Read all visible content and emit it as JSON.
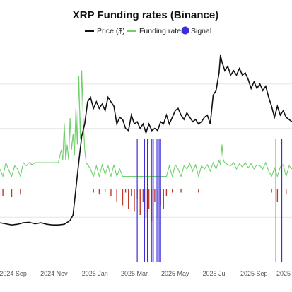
{
  "chart_data": {
    "type": "line",
    "title": "XRP Funding rates (Binance)",
    "legend": {
      "position": "top-center",
      "entries": [
        {
          "key": "price",
          "label": "Price ($)",
          "color": "#111111",
          "kind": "line"
        },
        {
          "key": "funding",
          "label": "Funding rates",
          "color": "#6fcf6a",
          "kind": "line"
        },
        {
          "key": "signal",
          "label": "Signal",
          "color": "#3b2fd9",
          "kind": "dot"
        }
      ]
    },
    "x_range": [
      0,
      1
    ],
    "x_ticks": [
      {
        "label": "2024 Sep",
        "t": 0.045
      },
      {
        "label": "2024 Nov",
        "t": 0.185
      },
      {
        "label": "2025 Jan",
        "t": 0.325
      },
      {
        "label": "2025 Mar",
        "t": 0.46
      },
      {
        "label": "2025 May",
        "t": 0.6
      },
      {
        "label": "2025 Jul",
        "t": 0.735
      },
      {
        "label": "2025 Sep",
        "t": 0.87
      },
      {
        "label": "2025",
        "t": 1.0
      }
    ],
    "grid": true,
    "price": {
      "name": "Price ($)",
      "color": "#111111",
      "y_range": [
        0,
        1
      ],
      "points": [
        [
          0.0,
          0.175
        ],
        [
          0.02,
          0.17
        ],
        [
          0.04,
          0.165
        ],
        [
          0.06,
          0.168
        ],
        [
          0.08,
          0.175
        ],
        [
          0.1,
          0.177
        ],
        [
          0.12,
          0.17
        ],
        [
          0.14,
          0.175
        ],
        [
          0.16,
          0.168
        ],
        [
          0.18,
          0.165
        ],
        [
          0.2,
          0.165
        ],
        [
          0.22,
          0.168
        ],
        [
          0.24,
          0.185
        ],
        [
          0.25,
          0.21
        ],
        [
          0.26,
          0.33
        ],
        [
          0.27,
          0.45
        ],
        [
          0.28,
          0.565
        ],
        [
          0.29,
          0.62
        ],
        [
          0.3,
          0.72
        ],
        [
          0.31,
          0.74
        ],
        [
          0.32,
          0.69
        ],
        [
          0.33,
          0.72
        ],
        [
          0.34,
          0.69
        ],
        [
          0.35,
          0.71
        ],
        [
          0.36,
          0.68
        ],
        [
          0.37,
          0.74
        ],
        [
          0.38,
          0.72
        ],
        [
          0.39,
          0.7
        ],
        [
          0.4,
          0.62
        ],
        [
          0.41,
          0.65
        ],
        [
          0.42,
          0.64
        ],
        [
          0.43,
          0.6
        ],
        [
          0.44,
          0.59
        ],
        [
          0.45,
          0.66
        ],
        [
          0.46,
          0.62
        ],
        [
          0.47,
          0.63
        ],
        [
          0.48,
          0.6
        ],
        [
          0.49,
          0.62
        ],
        [
          0.5,
          0.58
        ],
        [
          0.51,
          0.62
        ],
        [
          0.52,
          0.59
        ],
        [
          0.53,
          0.6
        ],
        [
          0.54,
          0.59
        ],
        [
          0.55,
          0.63
        ],
        [
          0.56,
          0.62
        ],
        [
          0.57,
          0.66
        ],
        [
          0.58,
          0.62
        ],
        [
          0.59,
          0.65
        ],
        [
          0.6,
          0.68
        ],
        [
          0.61,
          0.69
        ],
        [
          0.62,
          0.66
        ],
        [
          0.63,
          0.64
        ],
        [
          0.64,
          0.67
        ],
        [
          0.65,
          0.65
        ],
        [
          0.66,
          0.63
        ],
        [
          0.67,
          0.64
        ],
        [
          0.68,
          0.62
        ],
        [
          0.69,
          0.63
        ],
        [
          0.7,
          0.65
        ],
        [
          0.71,
          0.66
        ],
        [
          0.72,
          0.62
        ],
        [
          0.73,
          0.75
        ],
        [
          0.74,
          0.77
        ],
        [
          0.75,
          0.85
        ],
        [
          0.755,
          0.93
        ],
        [
          0.76,
          0.9
        ],
        [
          0.77,
          0.86
        ],
        [
          0.78,
          0.88
        ],
        [
          0.79,
          0.84
        ],
        [
          0.8,
          0.86
        ],
        [
          0.81,
          0.84
        ],
        [
          0.82,
          0.87
        ],
        [
          0.83,
          0.84
        ],
        [
          0.84,
          0.85
        ],
        [
          0.85,
          0.82
        ],
        [
          0.86,
          0.78
        ],
        [
          0.87,
          0.81
        ],
        [
          0.88,
          0.78
        ],
        [
          0.89,
          0.8
        ],
        [
          0.9,
          0.77
        ],
        [
          0.91,
          0.79
        ],
        [
          0.92,
          0.74
        ],
        [
          0.93,
          0.7
        ],
        [
          0.94,
          0.65
        ],
        [
          0.95,
          0.7
        ],
        [
          0.96,
          0.66
        ],
        [
          0.97,
          0.68
        ],
        [
          0.98,
          0.65
        ],
        [
          1.0,
          0.63
        ]
      ]
    },
    "funding": {
      "name": "Funding rates",
      "color": "#6fcf6a",
      "negative_color": "#c0392b",
      "y_range": [
        -1,
        1
      ],
      "baseline": 0.2,
      "points": [
        [
          0.0,
          0.02
        ],
        [
          0.01,
          -0.1
        ],
        [
          0.02,
          0.08
        ],
        [
          0.03,
          0.01
        ],
        [
          0.04,
          -0.12
        ],
        [
          0.05,
          0.05
        ],
        [
          0.06,
          0.02
        ],
        [
          0.07,
          -0.08
        ],
        [
          0.08,
          0.08
        ],
        [
          0.09,
          0.05
        ],
        [
          0.1,
          0.08
        ],
        [
          0.11,
          0.06
        ],
        [
          0.12,
          0.08
        ],
        [
          0.13,
          0.08
        ],
        [
          0.14,
          0.08
        ],
        [
          0.15,
          0.08
        ],
        [
          0.16,
          0.08
        ],
        [
          0.17,
          0.08
        ],
        [
          0.18,
          0.08
        ],
        [
          0.19,
          0.08
        ],
        [
          0.2,
          0.08
        ],
        [
          0.21,
          0.2
        ],
        [
          0.215,
          0.1
        ],
        [
          0.22,
          0.45
        ],
        [
          0.225,
          0.1
        ],
        [
          0.23,
          0.25
        ],
        [
          0.235,
          0.1
        ],
        [
          0.24,
          0.5
        ],
        [
          0.245,
          0.2
        ],
        [
          0.25,
          0.35
        ],
        [
          0.255,
          0.15
        ],
        [
          0.26,
          0.6
        ],
        [
          0.265,
          0.25
        ],
        [
          0.27,
          0.9
        ],
        [
          0.275,
          0.3
        ],
        [
          0.28,
          0.95
        ],
        [
          0.285,
          0.5
        ],
        [
          0.29,
          0.2
        ],
        [
          0.295,
          0.08
        ],
        [
          0.3,
          0.06
        ],
        [
          0.31,
          0.02
        ],
        [
          0.32,
          -0.05
        ],
        [
          0.33,
          0.05
        ],
        [
          0.34,
          -0.08
        ],
        [
          0.35,
          0.06
        ],
        [
          0.36,
          -0.03
        ],
        [
          0.37,
          0.05
        ],
        [
          0.38,
          -0.1
        ],
        [
          0.39,
          0.06
        ],
        [
          0.4,
          -0.2
        ],
        [
          0.41,
          0.02
        ],
        [
          0.42,
          -0.25
        ],
        [
          0.43,
          -0.05
        ],
        [
          0.44,
          -0.3
        ],
        [
          0.45,
          -0.1
        ],
        [
          0.46,
          -0.35
        ],
        [
          0.47,
          -0.15
        ],
        [
          0.48,
          -0.4
        ],
        [
          0.49,
          -0.2
        ],
        [
          0.5,
          -0.45
        ],
        [
          0.51,
          -0.3
        ],
        [
          0.52,
          -0.5
        ],
        [
          0.53,
          -0.2
        ],
        [
          0.54,
          -0.45
        ],
        [
          0.55,
          -0.25
        ],
        [
          0.56,
          -0.3
        ],
        [
          0.57,
          -0.1
        ],
        [
          0.58,
          0.05
        ],
        [
          0.59,
          -0.05
        ],
        [
          0.6,
          0.06
        ],
        [
          0.61,
          0.02
        ],
        [
          0.62,
          -0.05
        ],
        [
          0.63,
          0.05
        ],
        [
          0.64,
          0.02
        ],
        [
          0.65,
          0.07
        ],
        [
          0.66,
          0.0
        ],
        [
          0.67,
          0.06
        ],
        [
          0.68,
          -0.05
        ],
        [
          0.69,
          0.05
        ],
        [
          0.7,
          0.02
        ],
        [
          0.71,
          0.06
        ],
        [
          0.72,
          0.0
        ],
        [
          0.73,
          0.08
        ],
        [
          0.74,
          0.02
        ],
        [
          0.75,
          0.1
        ],
        [
          0.755,
          0.06
        ],
        [
          0.76,
          0.25
        ],
        [
          0.765,
          0.1
        ],
        [
          0.77,
          0.08
        ],
        [
          0.78,
          0.06
        ],
        [
          0.79,
          0.05
        ],
        [
          0.8,
          0.08
        ],
        [
          0.81,
          0.02
        ],
        [
          0.82,
          0.07
        ],
        [
          0.83,
          0.04
        ],
        [
          0.84,
          0.08
        ],
        [
          0.85,
          0.03
        ],
        [
          0.86,
          0.07
        ],
        [
          0.87,
          0.02
        ],
        [
          0.88,
          0.06
        ],
        [
          0.89,
          0.05
        ],
        [
          0.9,
          0.02
        ],
        [
          0.91,
          0.08
        ],
        [
          0.92,
          0.0
        ],
        [
          0.93,
          -0.05
        ],
        [
          0.94,
          0.03
        ],
        [
          0.95,
          -0.2
        ],
        [
          0.96,
          0.04
        ],
        [
          0.97,
          0.06
        ],
        [
          0.98,
          -0.08
        ],
        [
          0.99,
          0.05
        ],
        [
          1.0,
          0.02
        ]
      ]
    },
    "signal": {
      "name": "Signal",
      "color": "#3b2fd9",
      "x": [
        0.47,
        0.495,
        0.505,
        0.52,
        0.525,
        0.535,
        0.54,
        0.545,
        0.55,
        0.945,
        0.965
      ]
    }
  }
}
